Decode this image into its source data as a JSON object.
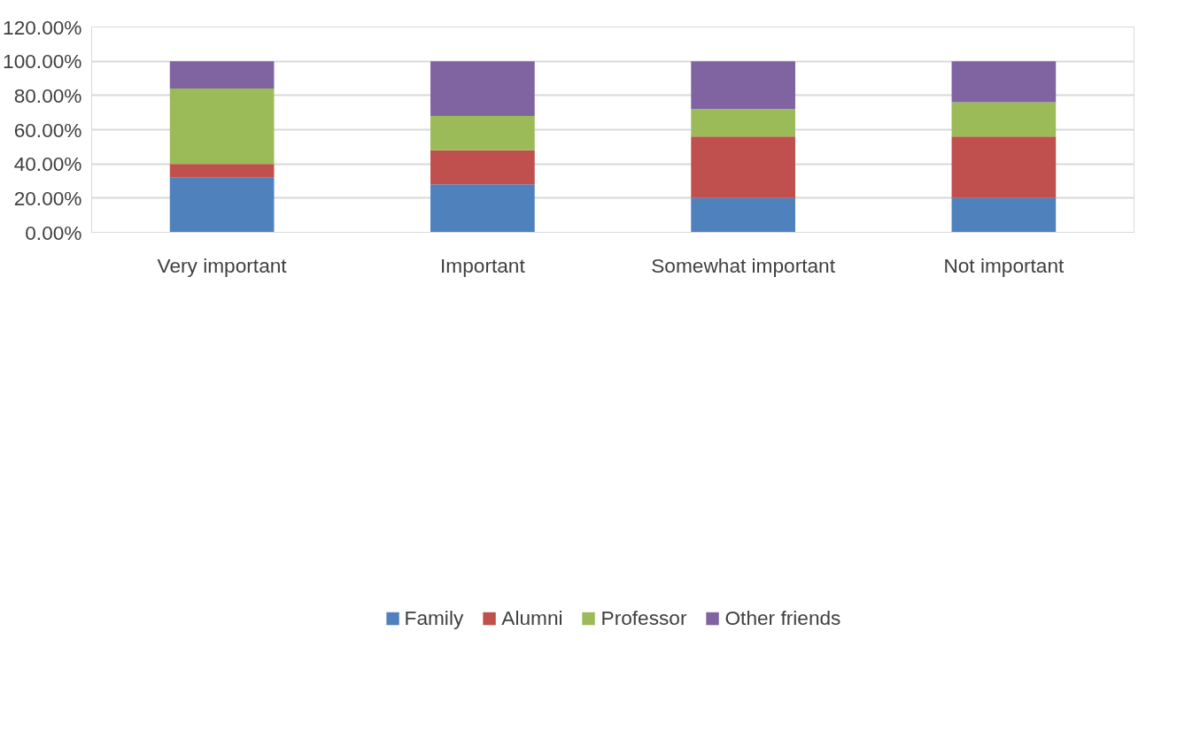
{
  "chart_data": {
    "type": "bar",
    "stacked": true,
    "categories": [
      "Very important",
      "Important",
      "Somewhat important",
      "Not important"
    ],
    "series": [
      {
        "name": "Family",
        "color": "#4f81bd",
        "values": [
          32,
          28,
          20,
          20
        ]
      },
      {
        "name": "Alumni",
        "color": "#c0504d",
        "values": [
          8,
          20,
          36,
          36
        ]
      },
      {
        "name": "Professor",
        "color": "#9bbb59",
        "values": [
          44,
          20,
          16,
          20
        ]
      },
      {
        "name": "Other friends",
        "color": "#8064a2",
        "values": [
          16,
          32,
          28,
          24
        ]
      }
    ],
    "ylim": [
      0,
      120
    ],
    "yticks": [
      {
        "value": 0,
        "label": "0.00%"
      },
      {
        "value": 20,
        "label": "20.00%"
      },
      {
        "value": 40,
        "label": "40.00%"
      },
      {
        "value": 60,
        "label": "60.00%"
      },
      {
        "value": 80,
        "label": "80.00%"
      },
      {
        "value": 100,
        "label": "100.00%"
      },
      {
        "value": 120,
        "label": "120.00%"
      }
    ],
    "grid": "y",
    "legend": "bottom"
  }
}
